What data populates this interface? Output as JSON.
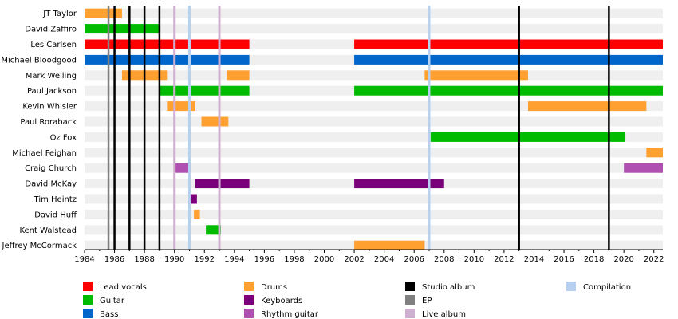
{
  "chart_data": {
    "type": "timeline",
    "x_range": [
      1984,
      2022.6
    ],
    "x_ticks": [
      "1984",
      "1986",
      "1988",
      "1990",
      "1992",
      "1994",
      "1996",
      "1998",
      "2000",
      "2002",
      "2004",
      "2006",
      "2008",
      "2010",
      "2012",
      "2014",
      "2016",
      "2018",
      "2020",
      "2022"
    ],
    "members": [
      "JT Taylor",
      "David Zaffiro",
      "Les Carlsen",
      "Michael Bloodgood",
      "Mark Welling",
      "Paul Jackson",
      "Kevin Whisler",
      "Paul Roraback",
      "Oz Fox",
      "Michael Feighan",
      "Craig Church",
      "David McKay",
      "Tim Heintz",
      "David Huff",
      "Kent Walstead",
      "Jeffrey McCormack"
    ],
    "roles": {
      "vocals": {
        "label": "Lead vocals",
        "color": "#ff0000"
      },
      "guitar": {
        "label": "Guitar",
        "color": "#00bb00"
      },
      "bass": {
        "label": "Bass",
        "color": "#0066cc"
      },
      "drums": {
        "label": "Drums",
        "color": "#ffa030"
      },
      "keyboards": {
        "label": "Keyboards",
        "color": "#7a007a"
      },
      "rhythm": {
        "label": "Rhythm guitar",
        "color": "#b050b0"
      }
    },
    "bars": [
      {
        "member": 0,
        "role": "drums",
        "start": 1984.0,
        "end": 1986.5
      },
      {
        "member": 1,
        "role": "guitar",
        "start": 1984.0,
        "end": 1989.0
      },
      {
        "member": 2,
        "role": "vocals",
        "start": 1984.0,
        "end": 1995.0
      },
      {
        "member": 2,
        "role": "vocals",
        "start": 2002.0,
        "end": 2022.6
      },
      {
        "member": 3,
        "role": "bass",
        "start": 1984.0,
        "end": 1995.0
      },
      {
        "member": 3,
        "role": "bass",
        "start": 2002.0,
        "end": 2022.6
      },
      {
        "member": 4,
        "role": "drums",
        "start": 1986.5,
        "end": 1989.5
      },
      {
        "member": 4,
        "role": "drums",
        "start": 1993.5,
        "end": 1995.0
      },
      {
        "member": 4,
        "role": "drums",
        "start": 2006.7,
        "end": 2013.6
      },
      {
        "member": 5,
        "role": "guitar",
        "start": 1989.0,
        "end": 1995.0
      },
      {
        "member": 5,
        "role": "guitar",
        "start": 2002.0,
        "end": 2022.6
      },
      {
        "member": 6,
        "role": "drums",
        "start": 1989.5,
        "end": 1991.4
      },
      {
        "member": 6,
        "role": "drums",
        "start": 2013.6,
        "end": 2021.5
      },
      {
        "member": 7,
        "role": "drums",
        "start": 1991.8,
        "end": 1993.6
      },
      {
        "member": 8,
        "role": "guitar",
        "start": 2007.1,
        "end": 2020.1
      },
      {
        "member": 9,
        "role": "drums",
        "start": 2021.5,
        "end": 2022.6
      },
      {
        "member": 10,
        "role": "rhythm",
        "start": 1990.0,
        "end": 1991.1
      },
      {
        "member": 10,
        "role": "rhythm",
        "start": 2020.0,
        "end": 2022.6
      },
      {
        "member": 11,
        "role": "keyboards",
        "start": 1991.4,
        "end": 1995.0
      },
      {
        "member": 11,
        "role": "keyboards",
        "start": 2002.0,
        "end": 2008.0
      },
      {
        "member": 12,
        "role": "keyboards",
        "start": 1991.0,
        "end": 1991.5
      },
      {
        "member": 13,
        "role": "drums",
        "start": 1991.3,
        "end": 1991.7
      },
      {
        "member": 14,
        "role": "guitar",
        "start": 1992.1,
        "end": 1993.1
      },
      {
        "member": 15,
        "role": "drums",
        "start": 2002.0,
        "end": 2006.7
      }
    ],
    "releases": [
      {
        "type": "ep",
        "year": 1985.6
      },
      {
        "type": "studio",
        "year": 1986.0
      },
      {
        "type": "studio",
        "year": 1987.0
      },
      {
        "type": "studio",
        "year": 1988.0
      },
      {
        "type": "studio",
        "year": 1989.0
      },
      {
        "type": "live",
        "year": 1990.0
      },
      {
        "type": "compilation",
        "year": 1991.0
      },
      {
        "type": "live",
        "year": 1993.0
      },
      {
        "type": "compilation",
        "year": 2007.0
      },
      {
        "type": "studio",
        "year": 2013.0
      },
      {
        "type": "studio",
        "year": 2019.0
      }
    ],
    "release_types": {
      "studio": {
        "label": "Studio album",
        "color": "#000000"
      },
      "ep": {
        "label": "EP",
        "color": "#808080"
      },
      "live": {
        "label": "Live album",
        "color": "#d0b0d0"
      },
      "compilation": {
        "label": "Compilation",
        "color": "#b8d0f0"
      }
    },
    "legend": [
      {
        "key": "vocals",
        "kind": "role"
      },
      {
        "key": "guitar",
        "kind": "role"
      },
      {
        "key": "bass",
        "kind": "role"
      },
      {
        "key": "drums",
        "kind": "role"
      },
      {
        "key": "keyboards",
        "kind": "role"
      },
      {
        "key": "rhythm",
        "kind": "role"
      },
      {
        "key": "studio",
        "kind": "release"
      },
      {
        "key": "ep",
        "kind": "release"
      },
      {
        "key": "live",
        "kind": "release"
      },
      {
        "key": "compilation",
        "kind": "release"
      }
    ]
  }
}
